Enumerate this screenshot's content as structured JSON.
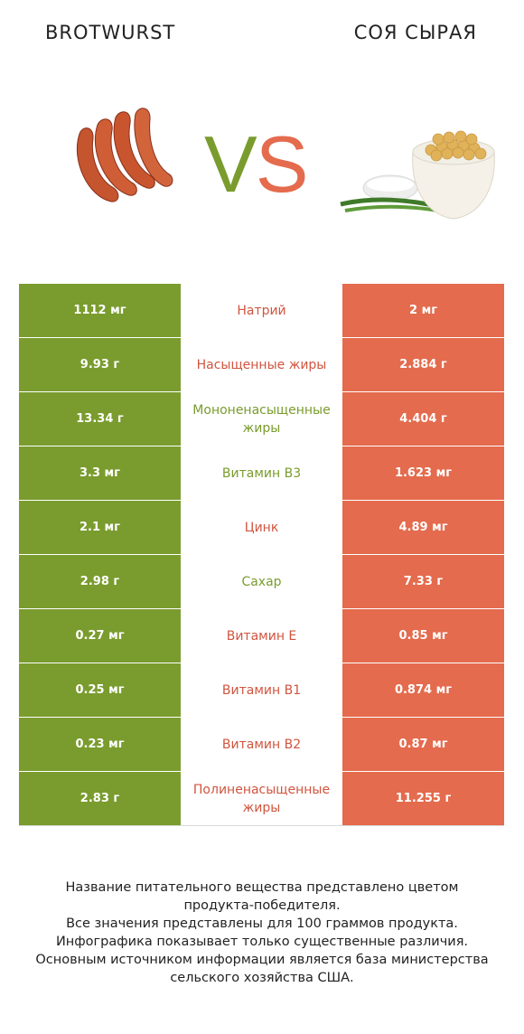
{
  "header": {
    "left_title": "BROTWURST",
    "right_title": "СОЯ СЫРАЯ",
    "vs_v": "V",
    "vs_s": "S"
  },
  "colors": {
    "left": "#7a9c2e",
    "right": "#e46b4d"
  },
  "rows": [
    {
      "left": "1112 мг",
      "nutrient": "Натрий",
      "right": "2 мг",
      "winner": "right"
    },
    {
      "left": "9.93 г",
      "nutrient": "Насыщенные жиры",
      "right": "2.884 г",
      "winner": "right"
    },
    {
      "left": "13.34 г",
      "nutrient": "Мононенасыщенные жиры",
      "right": "4.404 г",
      "winner": "left"
    },
    {
      "left": "3.3 мг",
      "nutrient": "Витамин B3",
      "right": "1.623 мг",
      "winner": "left"
    },
    {
      "left": "2.1 мг",
      "nutrient": "Цинк",
      "right": "4.89 мг",
      "winner": "right"
    },
    {
      "left": "2.98 г",
      "nutrient": "Сахар",
      "right": "7.33 г",
      "winner": "left"
    },
    {
      "left": "0.27 мг",
      "nutrient": "Витамин E",
      "right": "0.85 мг",
      "winner": "right"
    },
    {
      "left": "0.25 мг",
      "nutrient": "Витамин B1",
      "right": "0.874 мг",
      "winner": "right"
    },
    {
      "left": "0.23 мг",
      "nutrient": "Витамин B2",
      "right": "0.87 мг",
      "winner": "right"
    },
    {
      "left": "2.83 г",
      "nutrient": "Полиненасыщенные жиры",
      "right": "11.255 г",
      "winner": "right"
    }
  ],
  "footer": {
    "line1": "Название питательного вещества представлено цветом",
    "line2": "продукта-победителя.",
    "line3": "Все значения представлены для 100 граммов продукта.",
    "line4": "Инфографика показывает только существенные различия.",
    "line5": "Основным источником информации является база министерства",
    "line6": "сельского хозяйства США."
  }
}
